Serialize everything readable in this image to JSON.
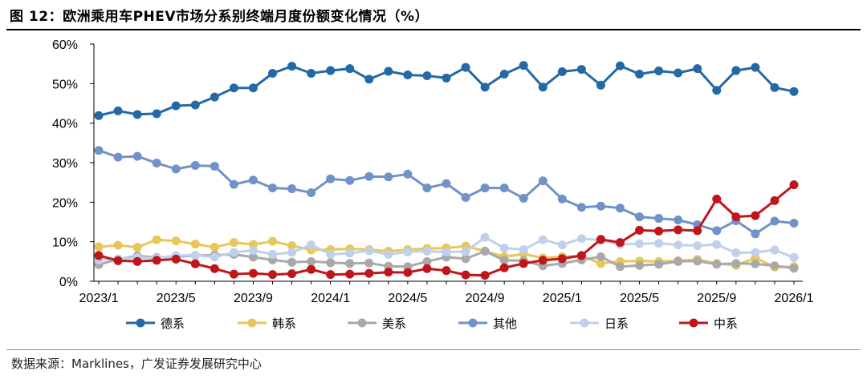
{
  "header": {
    "title": "图 12：欧洲乘用车PHEV市场分系别终端月度份额变化情况（%）"
  },
  "footer": {
    "source": "数据来源：Marklines，广发证券发展研究中心"
  },
  "chart_data": {
    "type": "line",
    "title": "欧洲乘用车PHEV市场分系别终端月度份额变化情况（%）",
    "xlabel": "",
    "ylabel": "",
    "ylim": [
      0,
      60
    ],
    "yticks": [
      "0%",
      "10%",
      "20%",
      "30%",
      "40%",
      "50%",
      "60%"
    ],
    "xtick_labels": [
      "2023/1",
      "2023/5",
      "2023/9",
      "2024/1",
      "2024/5",
      "2024/9",
      "2025/1",
      "2025/5",
      "2025/9",
      "2026/1"
    ],
    "grid": false,
    "legend_position": "bottom",
    "series": [
      {
        "name": "德系",
        "color": "#2369A6",
        "values": [
          41.9,
          43.1,
          42.2,
          42.4,
          44.4,
          44.6,
          46.6,
          48.9,
          48.9,
          52.6,
          54.4,
          52.6,
          53.3,
          53.8,
          51.1,
          53.1,
          52.2,
          52.0,
          51.4,
          54.1,
          49.1,
          52.4,
          54.6,
          49.1,
          53.0,
          53.6,
          49.6,
          54.5,
          52.4,
          53.2,
          52.7,
          53.8,
          48.3,
          53.3,
          54.1,
          49.0,
          48.0
        ]
      },
      {
        "name": "韩系",
        "color": "#E8C75A",
        "values": [
          8.7,
          9.1,
          8.6,
          10.5,
          10.2,
          9.4,
          8.6,
          9.8,
          9.3,
          10.1,
          9.0,
          7.9,
          8.0,
          8.2,
          8.0,
          7.6,
          8.0,
          8.3,
          8.4,
          8.9,
          7.6,
          6.2,
          6.9,
          5.9,
          6.2,
          6.4,
          4.5,
          5.0,
          5.1,
          5.0,
          5.2,
          5.5,
          4.5,
          4.0,
          5.9,
          3.6,
          3.7
        ]
      },
      {
        "name": "美系",
        "color": "#A9A9A9",
        "values": [
          4.2,
          5.6,
          6.4,
          6.0,
          6.2,
          6.5,
          6.6,
          6.8,
          6.1,
          5.4,
          4.8,
          5.0,
          4.7,
          4.5,
          4.6,
          3.8,
          3.7,
          5.0,
          6.1,
          5.7,
          7.6,
          5.3,
          5.2,
          3.9,
          4.5,
          5.4,
          6.2,
          3.7,
          4.0,
          4.3,
          5.0,
          5.1,
          4.3,
          4.5,
          4.4,
          3.9,
          3.3
        ]
      },
      {
        "name": "其他",
        "color": "#7092C8",
        "values": [
          33.1,
          31.4,
          31.6,
          29.9,
          28.4,
          29.3,
          29.1,
          24.5,
          25.6,
          23.6,
          23.4,
          22.4,
          25.9,
          25.5,
          26.5,
          26.4,
          27.1,
          23.6,
          24.7,
          21.2,
          23.6,
          23.6,
          21.0,
          25.4,
          20.8,
          18.7,
          19.0,
          18.5,
          16.3,
          15.9,
          15.5,
          14.3,
          12.8,
          15.3,
          12.0,
          15.2,
          14.7
        ]
      },
      {
        "name": "日系",
        "color": "#BFD1EA",
        "values": [
          5.4,
          5.7,
          6.0,
          5.8,
          6.5,
          6.6,
          6.1,
          7.3,
          7.8,
          6.8,
          7.3,
          9.2,
          6.8,
          7.1,
          7.7,
          6.8,
          7.4,
          7.6,
          7.4,
          7.5,
          11.1,
          8.4,
          8.0,
          10.5,
          9.2,
          10.8,
          10.4,
          9.3,
          9.5,
          9.6,
          9.2,
          9.0,
          9.3,
          7.2,
          7.3,
          7.9,
          6.0
        ]
      },
      {
        "name": "中系",
        "color": "#C0151B",
        "values": [
          6.5,
          5.2,
          5.0,
          5.3,
          5.6,
          4.4,
          3.2,
          1.8,
          2.0,
          1.7,
          1.9,
          3.0,
          1.7,
          1.8,
          2.0,
          2.3,
          2.2,
          3.2,
          2.7,
          1.6,
          1.5,
          3.4,
          4.5,
          5.3,
          5.7,
          6.5,
          10.6,
          9.8,
          12.9,
          12.7,
          13.0,
          12.8,
          20.8,
          16.3,
          16.6,
          20.4,
          24.4
        ]
      }
    ]
  }
}
